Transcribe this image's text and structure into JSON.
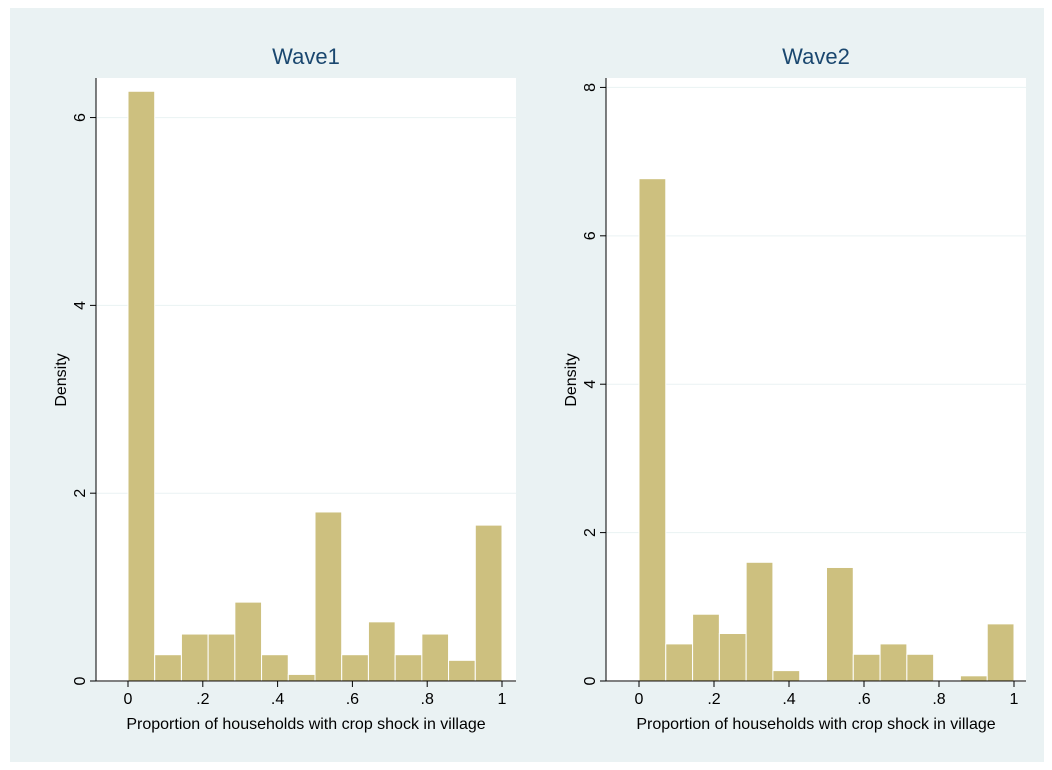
{
  "colors": {
    "bar_fill": "#cdc07f",
    "plot_background": "#ffffff",
    "figure_background": "#eaf2f3",
    "title_color": "#1a476f"
  },
  "chart_data": [
    {
      "type": "bar",
      "title": "Wave1",
      "xlabel": "Proportion of households with crop shock in village",
      "ylabel": "Density",
      "xlim": [
        0,
        1
      ],
      "ylim": [
        0,
        6.4
      ],
      "x_ticks": [
        0,
        0.2,
        0.4,
        0.6,
        0.8,
        1
      ],
      "x_tick_labels": [
        "0",
        ".2",
        ".4",
        ".6",
        ".8",
        "1"
      ],
      "y_ticks": [
        0,
        2,
        4,
        6
      ],
      "y_tick_labels": [
        "0",
        "2",
        "4",
        "6"
      ],
      "grid": true,
      "bin_width": 0.0714,
      "bin_starts": [
        0,
        0.0714,
        0.1429,
        0.2143,
        0.2857,
        0.3571,
        0.4286,
        0.5,
        0.5714,
        0.6429,
        0.7143,
        0.7857,
        0.8571,
        0.9286
      ],
      "values": [
        6.28,
        0.28,
        0.5,
        0.5,
        0.84,
        0.28,
        0.07,
        1.8,
        0.28,
        0.63,
        0.28,
        0.5,
        0.22,
        1.66
      ]
    },
    {
      "type": "bar",
      "title": "Wave2",
      "xlabel": "Proportion of households with crop shock in village",
      "ylabel": "Density",
      "xlim": [
        0,
        1
      ],
      "ylim": [
        0,
        8.1
      ],
      "x_ticks": [
        0,
        0.2,
        0.4,
        0.6,
        0.8,
        1
      ],
      "x_tick_labels": [
        "0",
        ".2",
        ".4",
        ".6",
        ".8",
        "1"
      ],
      "y_ticks": [
        0,
        2,
        4,
        6,
        8
      ],
      "y_tick_labels": [
        "0",
        "2",
        "4",
        "6",
        "8"
      ],
      "grid": true,
      "bin_width": 0.0714,
      "bin_starts": [
        0,
        0.0714,
        0.1429,
        0.2143,
        0.2857,
        0.3571,
        0.4286,
        0.5,
        0.5714,
        0.6429,
        0.7143,
        0.7857,
        0.8571,
        0.9286
      ],
      "values": [
        6.77,
        0.5,
        0.9,
        0.64,
        1.6,
        0.14,
        0,
        1.53,
        0.36,
        0.5,
        0.36,
        0,
        0.07,
        0.77
      ]
    }
  ]
}
